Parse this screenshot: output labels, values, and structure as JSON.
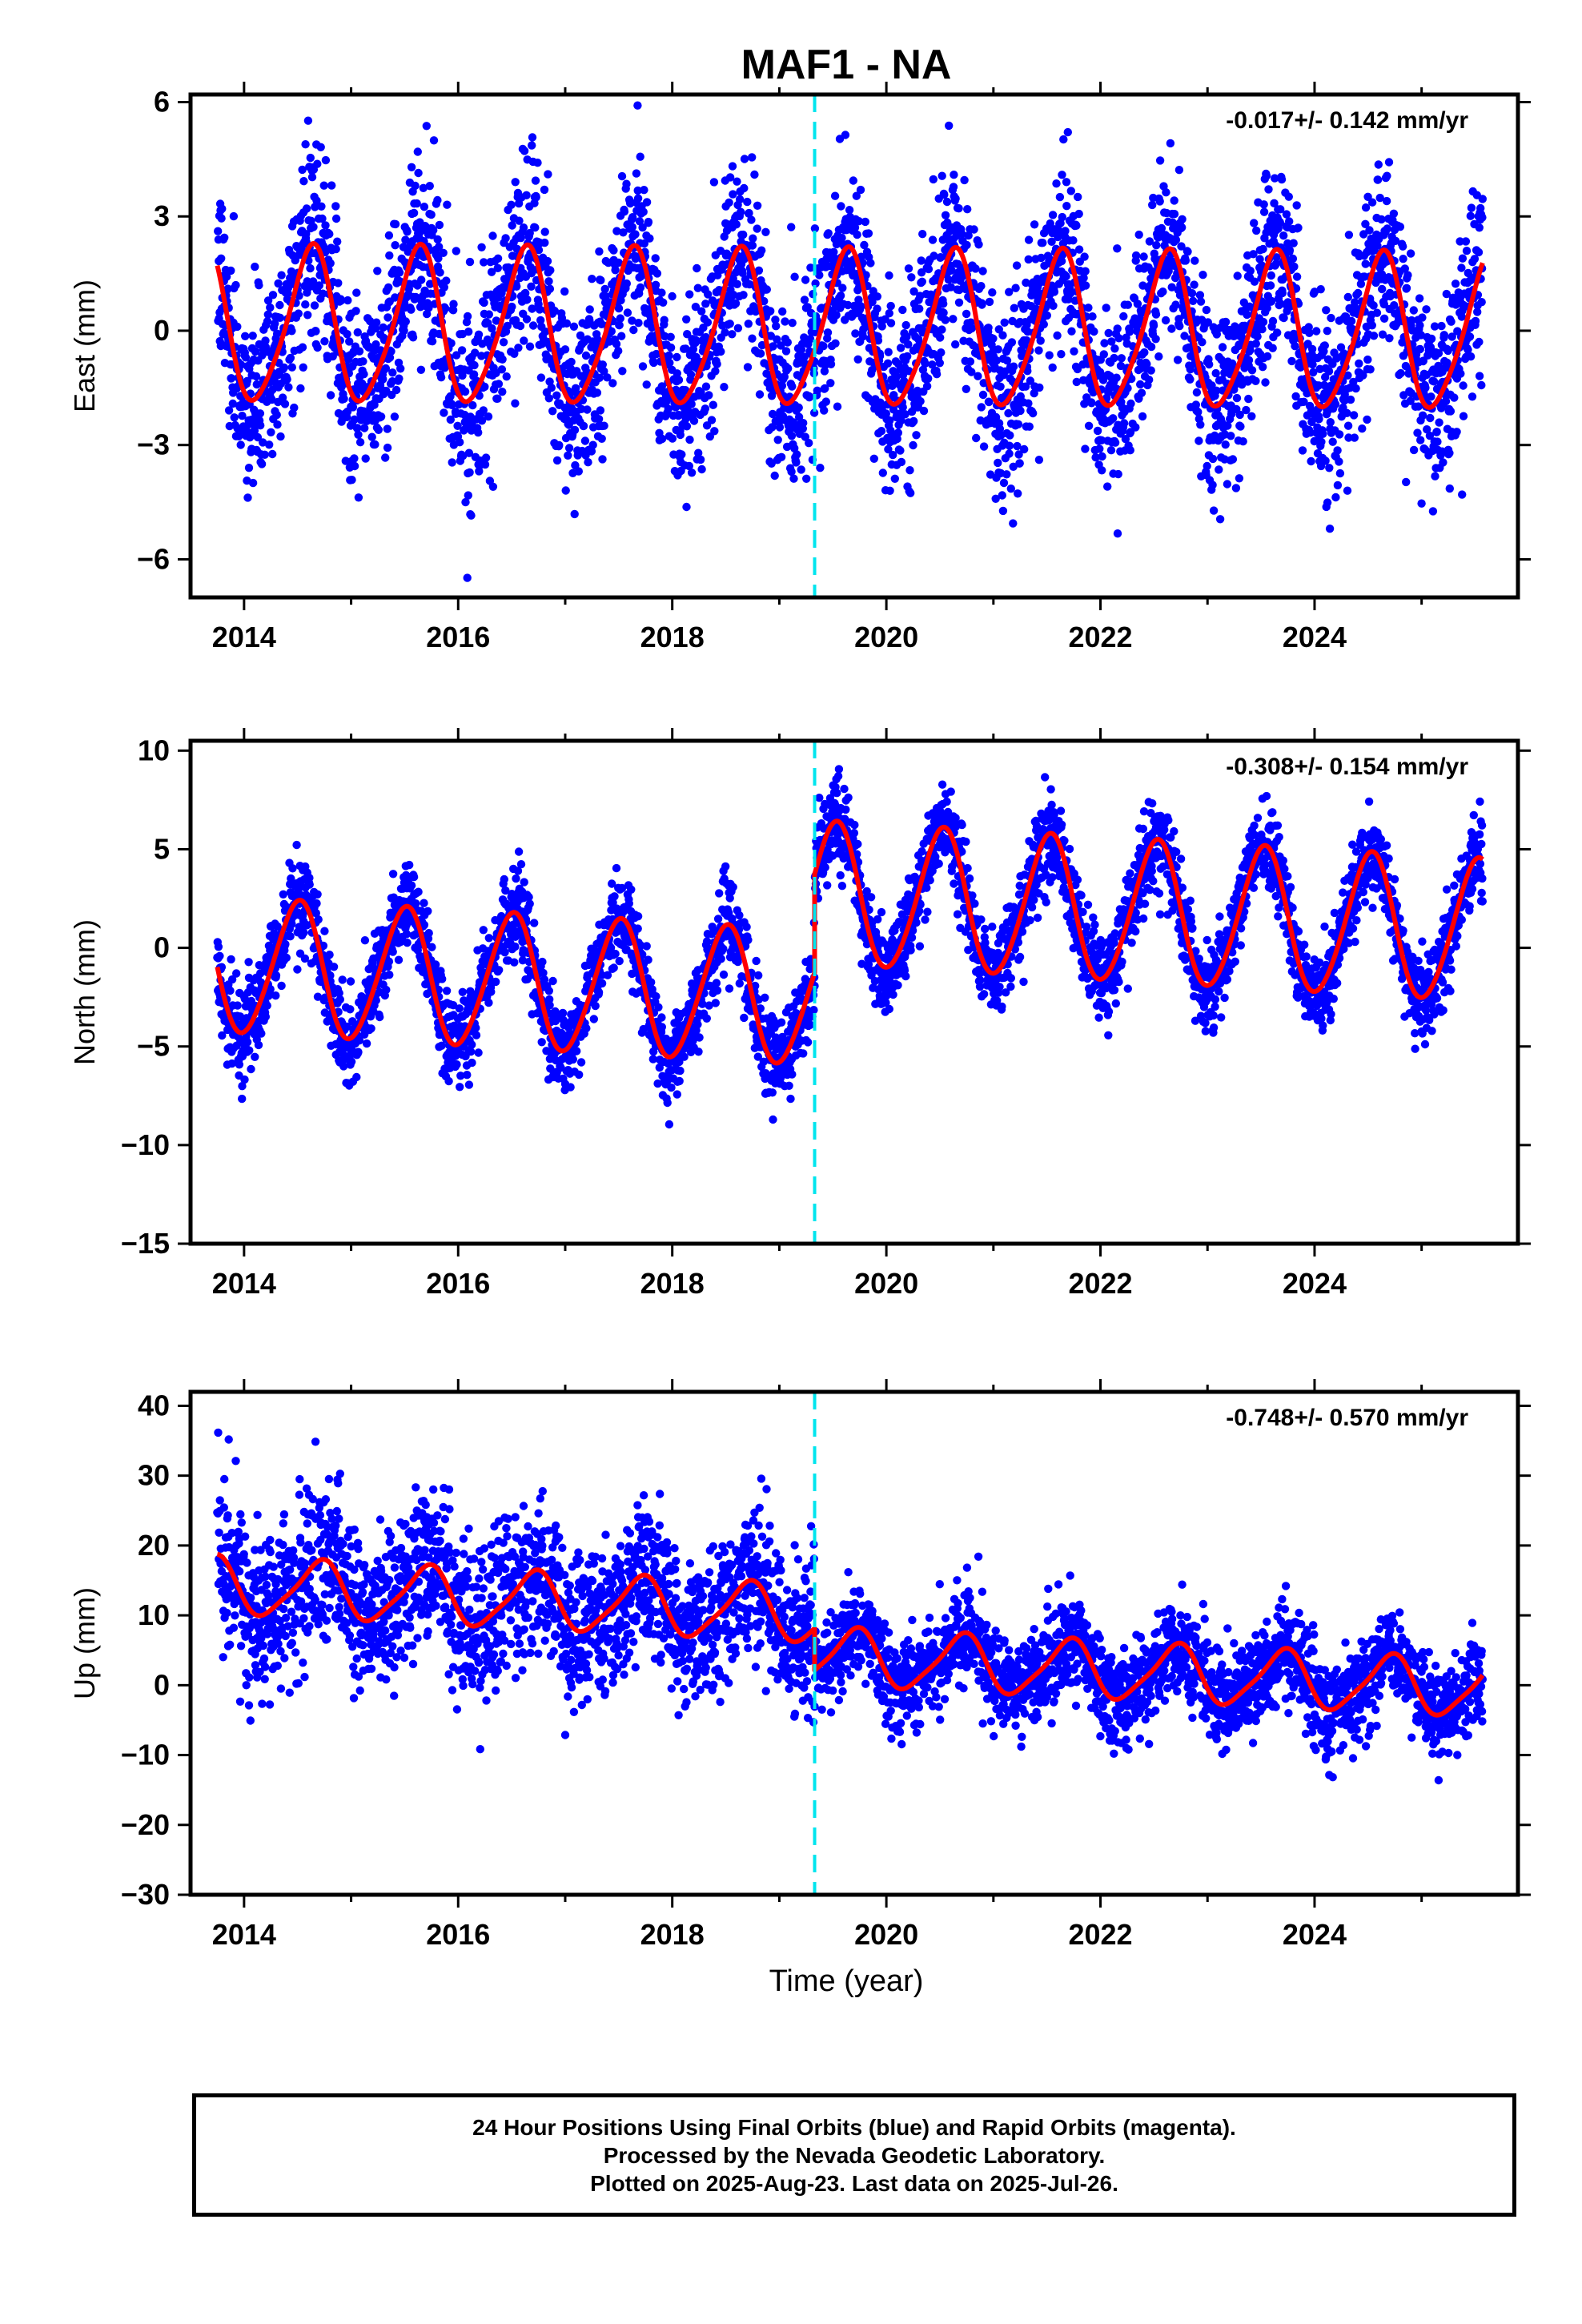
{
  "figure": {
    "title": "MAF1 - NA",
    "xlabel": "Time (year)",
    "colors": {
      "final_orbits": "#0000ff",
      "model": "#ff0000",
      "break": "#00e5ee",
      "frame": "#000000"
    }
  },
  "footer": {
    "line1": "24 Hour Positions Using Final Orbits (blue) and Rapid Orbits (magenta).",
    "line2": "Processed by the Nevada Geodetic Laboratory.",
    "line3": "Plotted on 2025-Aug-23. Last data on 2025-Jul-26."
  },
  "chart_data": [
    {
      "type": "scatter",
      "component": "east",
      "ylabel": "East (mm)",
      "rate_label": "-0.017+/- 0.142 mm/yr",
      "xlim": [
        2013.5,
        2025.9
      ],
      "ylim": [
        -7.0,
        6.2
      ],
      "x_ticks": [
        2014,
        2016,
        2018,
        2020,
        2022,
        2024
      ],
      "y_ticks": [
        -6,
        -3,
        0,
        3,
        6
      ],
      "break_epoch": 2019.33,
      "data_span": [
        2013.75,
        2025.57
      ],
      "series": [
        {
          "name": "Final Orbits (blue)",
          "kind": "daily-positions",
          "scatter_sd": 1.2
        },
        {
          "name": "model fit",
          "kind": "line",
          "trend": -0.017,
          "offset": 0.0,
          "annual": {
            "before": {
              "amplitude": 2.0,
              "peak_phase": 0.62
            },
            "after": {
              "amplitude": 2.0,
              "peak_phase": 0.62
            }
          },
          "semiannual": {
            "amplitude": 0.3,
            "phase": 0.2
          },
          "step_at_break": 0.0
        }
      ]
    },
    {
      "type": "scatter",
      "component": "north",
      "ylabel": "North (mm)",
      "rate_label": "-0.308+/- 0.154 mm/yr",
      "xlim": [
        2013.5,
        2025.9
      ],
      "ylim": [
        -15.0,
        10.5
      ],
      "x_ticks": [
        2014,
        2016,
        2018,
        2020,
        2022,
        2024
      ],
      "y_ticks": [
        -15,
        -10,
        -5,
        0,
        5,
        10
      ],
      "break_epoch": 2019.33,
      "data_span": [
        2013.75,
        2025.57
      ],
      "series": [
        {
          "name": "Final Orbits (blue)",
          "kind": "daily-positions",
          "scatter_sd": 1.1
        },
        {
          "name": "model fit",
          "kind": "line",
          "trend": -0.308,
          "offset": 0.0,
          "annual": {
            "before": {
              "amplitude": 3.4,
              "peak_phase": 0.5
            },
            "after": {
              "amplitude": 3.6,
              "peak_phase": 0.52
            }
          },
          "semiannual": {
            "amplitude": 0.3,
            "phase": 0.1
          },
          "step_at_break": 5.3
        }
      ]
    },
    {
      "type": "scatter",
      "component": "up",
      "ylabel": "Up (mm)",
      "rate_label": "-0.748+/- 0.570 mm/yr",
      "xlim": [
        2013.5,
        2025.9
      ],
      "ylim": [
        -30.0,
        42.0
      ],
      "x_ticks": [
        2014,
        2016,
        2018,
        2020,
        2022,
        2024
      ],
      "y_ticks": [
        -30,
        -20,
        -10,
        0,
        10,
        20,
        30,
        40
      ],
      "break_epoch": 2019.33,
      "data_span": [
        2013.75,
        2025.57
      ],
      "series": [
        {
          "name": "Final Orbits (blue)",
          "kind": "daily-positions",
          "scatter_sd": {
            "before": 5.5,
            "after": 3.3
          }
        },
        {
          "name": "model fit",
          "kind": "line",
          "trend": -0.748,
          "offset": 7.0,
          "annual": {
            "before": {
              "amplitude": 4.0,
              "peak_phase": 0.7
            },
            "after": {
              "amplitude": 4.0,
              "peak_phase": 0.7
            }
          },
          "semiannual": {
            "amplitude": 0.8,
            "phase": 0.3
          },
          "step_at_break": -6.0
        }
      ]
    }
  ]
}
